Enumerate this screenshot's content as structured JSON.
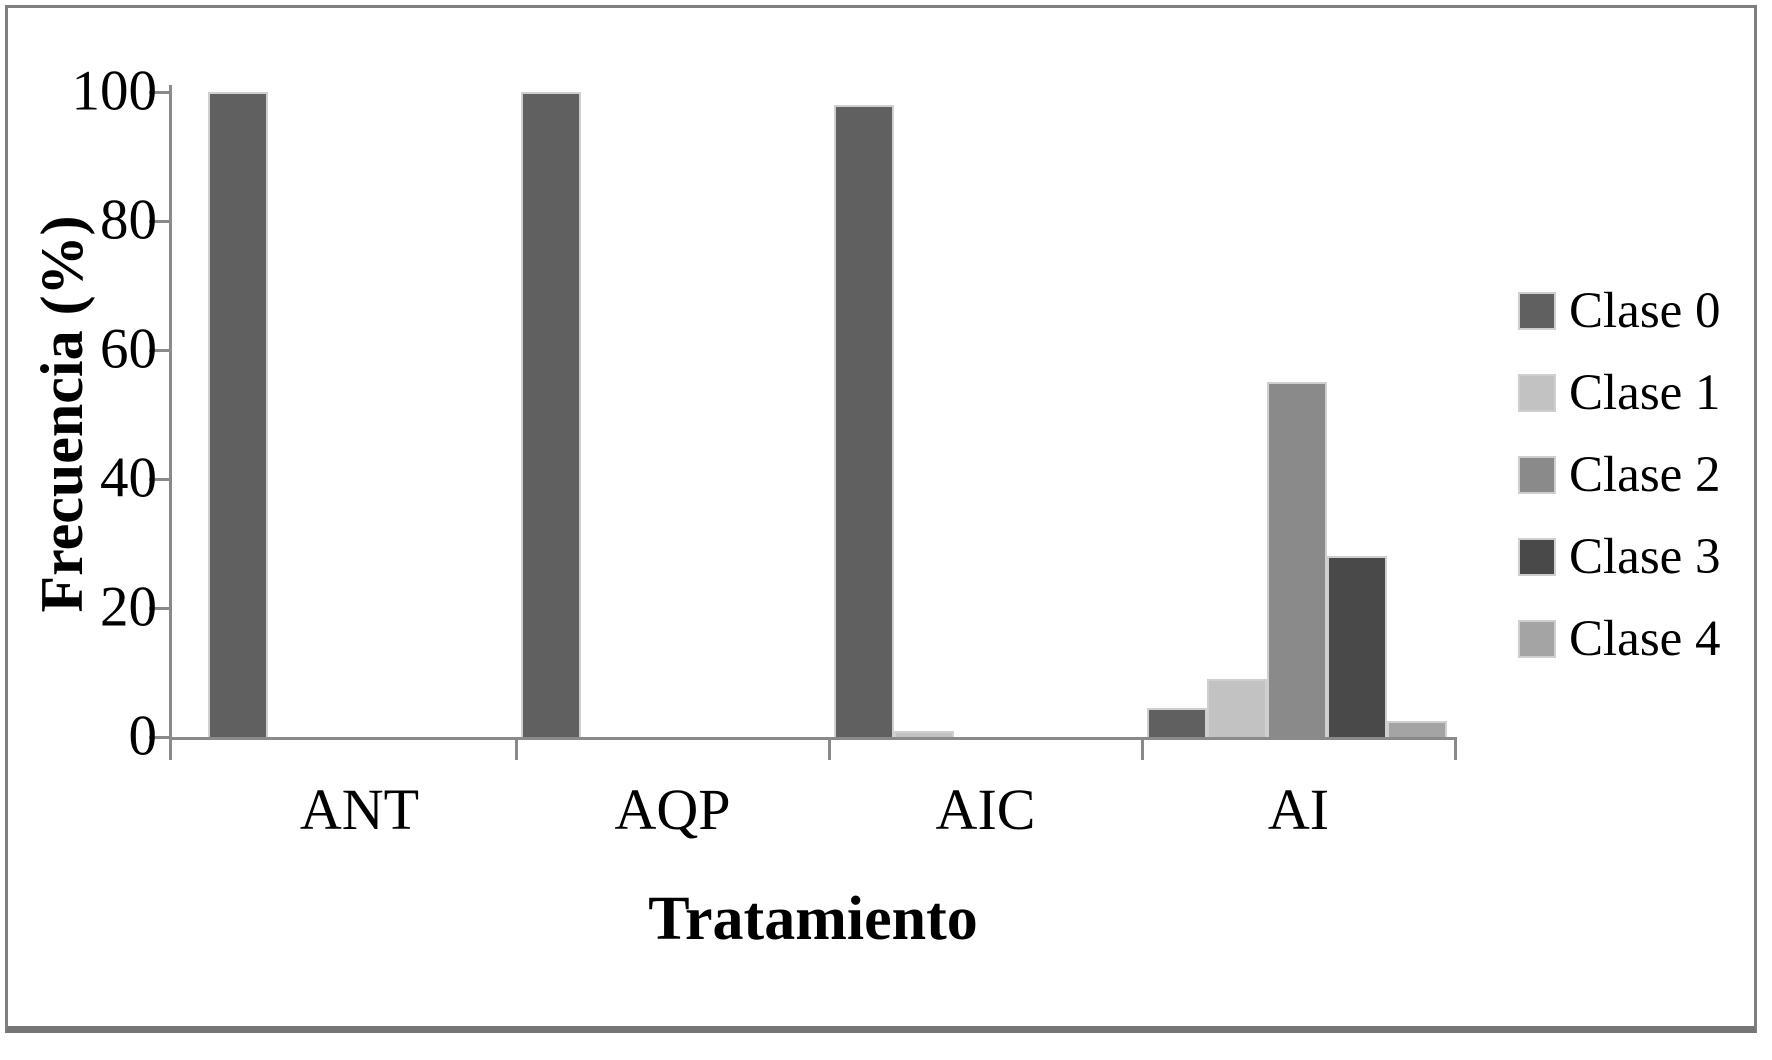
{
  "chart_data": {
    "type": "bar",
    "title": "",
    "ylabel": "Frecuencia (%)",
    "xlabel": "Tratamiento",
    "categories": [
      "ANT",
      "AQP",
      "AIC",
      "AI"
    ],
    "series": [
      {
        "name": "Clase 0",
        "color": "#606060",
        "values": [
          100,
          100,
          98,
          4.5
        ]
      },
      {
        "name": "Clase 1",
        "color": "#c2c2c2",
        "values": [
          0,
          0,
          1,
          9
        ]
      },
      {
        "name": "Clase 2",
        "color": "#8a8a8a",
        "values": [
          0,
          0,
          0,
          55
        ]
      },
      {
        "name": "Clase 3",
        "color": "#494949",
        "values": [
          0,
          0,
          0,
          28
        ]
      },
      {
        "name": "Clase 4",
        "color": "#a4a4a4",
        "values": [
          0,
          0,
          0,
          2.5
        ]
      }
    ],
    "yticks": [
      0,
      20,
      40,
      60,
      80,
      100
    ],
    "ylim": [
      0,
      100
    ],
    "grid": false,
    "legend_position": "right",
    "axis_color": "#8a8a8a",
    "bar_border_color": "#cfcfcf",
    "frame_color": "#7f7f7f",
    "text_color": "#000000",
    "background": "#ffffff"
  }
}
